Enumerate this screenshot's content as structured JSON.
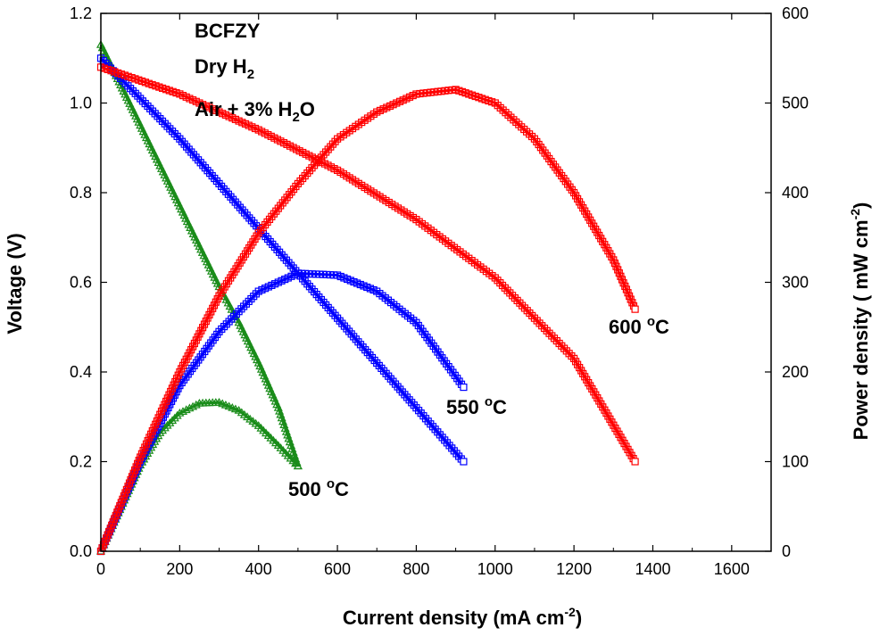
{
  "chart_data": {
    "type": "line",
    "title": "",
    "xlabel": {
      "main": "Current density (mA cm",
      "sup": "-2",
      "end": ")"
    },
    "ylabel_left": "Voltage (V)",
    "ylabel_right": {
      "main": "Power density ( mW cm",
      "sup": "-2",
      "end": ")"
    },
    "xlim": [
      0,
      1700
    ],
    "ylim_left": [
      0,
      1.2
    ],
    "ylim_right": [
      0,
      600
    ],
    "x_ticks": [
      0,
      200,
      400,
      600,
      800,
      1000,
      1200,
      1400,
      1600
    ],
    "x_tick_labels": [
      "0",
      "200",
      "400",
      "600",
      "800",
      "1000",
      "1200",
      "1400",
      "1600"
    ],
    "y_left_ticks": [
      0,
      0.2,
      0.4,
      0.6,
      0.8,
      1.0,
      1.2
    ],
    "y_left_tick_labels": [
      "0.0",
      "0.2",
      "0.4",
      "0.6",
      "0.8",
      "1.0",
      "1.2"
    ],
    "y_right_ticks": [
      0,
      100,
      200,
      300,
      400,
      500,
      600
    ],
    "y_right_tick_labels": [
      "0",
      "100",
      "200",
      "300",
      "400",
      "500",
      "600"
    ],
    "colors": {
      "500": "#1a8c1a",
      "550": "#0000ff",
      "600": "#ff0000"
    },
    "annotations": {
      "material": "BCFZY",
      "fuel": {
        "main": "Dry H",
        "sub": "2"
      },
      "oxidant": {
        "main": "Air + 3% H",
        "sub": "2",
        "end": "O"
      }
    },
    "temp_labels": {
      "t500": {
        "value": "500 ",
        "sup": "o",
        "unit": "C"
      },
      "t550": {
        "value": "550 ",
        "sup": "o",
        "unit": "C"
      },
      "t600": {
        "value": "600 ",
        "sup": "o",
        "unit": "C"
      }
    },
    "series": [
      {
        "name": "500 °C voltage",
        "axis": "left",
        "color": "#1a8c1a",
        "marker": "triangle",
        "x": [
          0,
          50,
          100,
          150,
          200,
          250,
          300,
          350,
          400,
          450,
          500
        ],
        "y": [
          1.13,
          1.04,
          0.95,
          0.86,
          0.77,
          0.68,
          0.59,
          0.51,
          0.42,
          0.32,
          0.19
        ]
      },
      {
        "name": "500 °C power",
        "axis": "right",
        "color": "#1a8c1a",
        "marker": "triangle",
        "x": [
          0,
          100,
          150,
          200,
          250,
          300,
          350,
          400,
          450,
          500
        ],
        "y": [
          0,
          96,
          132,
          154,
          165,
          166,
          157,
          140,
          118,
          95
        ]
      },
      {
        "name": "550 °C voltage",
        "axis": "left",
        "color": "#0000ff",
        "marker": "square",
        "x": [
          0,
          100,
          200,
          300,
          400,
          500,
          600,
          700,
          800,
          920
        ],
        "y": [
          1.1,
          1.01,
          0.92,
          0.82,
          0.72,
          0.62,
          0.52,
          0.42,
          0.32,
          0.2
        ]
      },
      {
        "name": "550 °C power",
        "axis": "right",
        "color": "#0000ff",
        "marker": "square",
        "x": [
          0,
          100,
          200,
          300,
          400,
          500,
          600,
          700,
          800,
          920
        ],
        "y": [
          0,
          100,
          185,
          245,
          290,
          310,
          308,
          290,
          255,
          183
        ]
      },
      {
        "name": "600 °C voltage",
        "axis": "left",
        "color": "#ff0000",
        "marker": "square",
        "x": [
          0,
          200,
          400,
          600,
          800,
          1000,
          1200,
          1355
        ],
        "y": [
          1.08,
          1.02,
          0.94,
          0.85,
          0.74,
          0.61,
          0.43,
          0.2
        ]
      },
      {
        "name": "600 °C power",
        "axis": "right",
        "color": "#ff0000",
        "marker": "square",
        "x": [
          0,
          100,
          200,
          300,
          400,
          500,
          600,
          700,
          800,
          900,
          1000,
          1100,
          1200,
          1300,
          1355
        ],
        "y": [
          0,
          105,
          200,
          285,
          355,
          410,
          460,
          490,
          510,
          515,
          500,
          460,
          400,
          325,
          270
        ]
      }
    ]
  }
}
